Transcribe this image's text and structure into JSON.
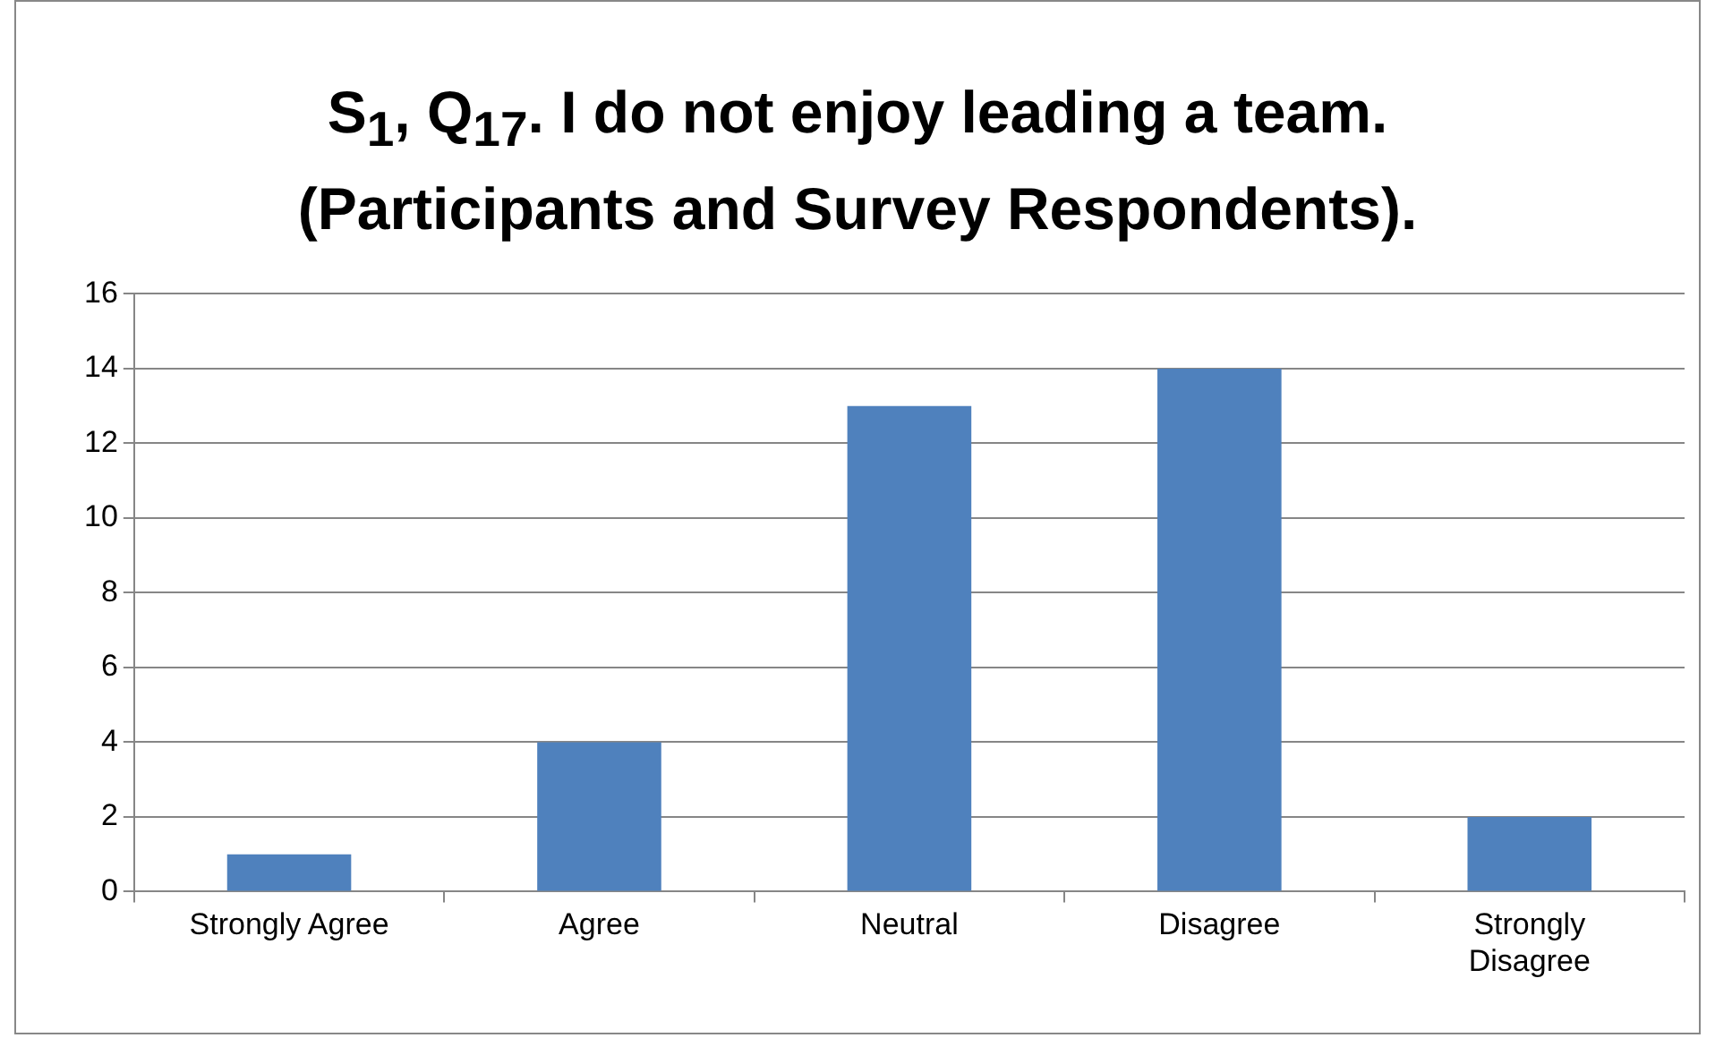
{
  "chart_data": {
    "type": "bar",
    "title": "S$_{1}$, Q$_{17}$. I do not enjoy leading a team.\n(Participants and Survey Respondents).",
    "categories": [
      "Strongly Agree",
      "Agree",
      "Neutral",
      "Disagree",
      "Strongly Disagree"
    ],
    "values": [
      1,
      4,
      13,
      14,
      2
    ],
    "color": "#4f81bd",
    "ylim": [
      0,
      16
    ],
    "yticks": [
      0,
      2,
      4,
      6,
      8,
      10,
      12,
      14,
      16
    ],
    "grid": "y",
    "legend": false
  }
}
